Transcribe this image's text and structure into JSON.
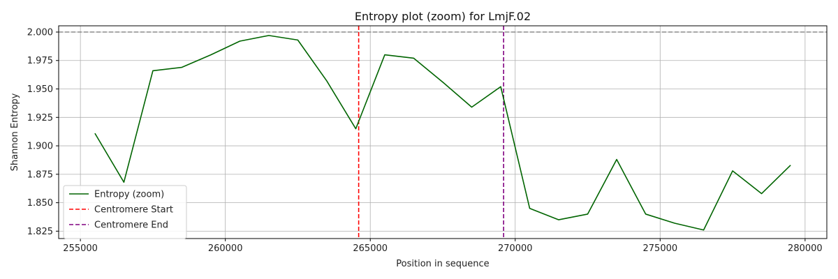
{
  "chart_data": {
    "type": "line",
    "title": "Entropy plot (zoom) for LmjF.02",
    "xlabel": "Position in sequence",
    "ylabel": "Shannon Entropy",
    "xlim": [
      254250,
      280750
    ],
    "ylim": [
      1.8185,
      2.0055
    ],
    "xticks": [
      255000,
      260000,
      265000,
      270000,
      275000,
      280000
    ],
    "yticks": [
      1.825,
      1.85,
      1.875,
      1.9,
      1.925,
      1.95,
      1.975,
      2.0
    ],
    "grid": true,
    "legend_position": "lower-left",
    "series": [
      {
        "name": "Entropy (zoom)",
        "color": "#006400",
        "x": [
          255500,
          256500,
          257500,
          258500,
          259500,
          260500,
          261500,
          262500,
          263500,
          264500,
          265500,
          266500,
          267500,
          268500,
          269500,
          270500,
          271500,
          272500,
          273500,
          274500,
          275500,
          276500,
          277500,
          278500,
          279500
        ],
        "y": [
          1.911,
          1.868,
          1.966,
          1.969,
          1.98,
          1.992,
          1.997,
          1.993,
          1.957,
          1.915,
          1.98,
          1.977,
          1.956,
          1.934,
          1.952,
          1.845,
          1.835,
          1.84,
          1.888,
          1.84,
          1.832,
          1.826,
          1.878,
          1.858,
          1.883
        ]
      }
    ],
    "reference_lines": [
      {
        "orientation": "vertical",
        "value": 264600,
        "name": "Centromere Start",
        "color": "#ff0000",
        "style": "dashed"
      },
      {
        "orientation": "vertical",
        "value": 269600,
        "name": "Centromere End",
        "color": "#800080",
        "style": "dashed"
      },
      {
        "orientation": "horizontal",
        "value": 2.0,
        "name": "",
        "color": "#808080",
        "style": "dashed"
      }
    ]
  }
}
